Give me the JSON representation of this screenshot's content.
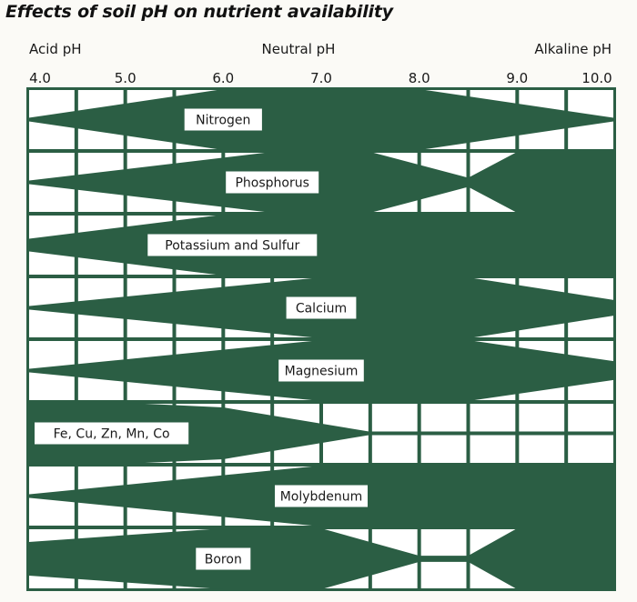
{
  "title": "Effects of soil pH on nutrient availability",
  "colors": {
    "band": "#2b5e44",
    "background": "#fbfaf6",
    "label_box": "#ffffff",
    "text": "#1a1a1a"
  },
  "chart_data": {
    "type": "area",
    "title": "Effects of soil pH on nutrient availability",
    "x_header_labels": {
      "left": "Acid pH",
      "center": "Neutral pH",
      "right": "Alkaline pH"
    },
    "x_ticks": [
      "4.0",
      "5.0",
      "6.0",
      "7.0",
      "8.0",
      "9.0",
      "10.0"
    ],
    "xlim": [
      4.0,
      10.0
    ],
    "value_meaning": "relative availability (band thickness, 0-1)",
    "series": [
      {
        "name": "Nitrogen",
        "x": [
          4.0,
          6.0,
          8.0,
          10.0
        ],
        "values": [
          0.05,
          1.0,
          1.0,
          0.05
        ]
      },
      {
        "name": "Phosphorus",
        "x": [
          4.0,
          6.5,
          7.5,
          8.5,
          9.0,
          10.0
        ],
        "values": [
          0.05,
          1.0,
          1.0,
          0.15,
          1.0,
          1.0
        ]
      },
      {
        "name": "Potassium and Sulfur",
        "x": [
          4.0,
          6.0,
          10.0
        ],
        "values": [
          0.2,
          1.0,
          1.0
        ]
      },
      {
        "name": "Calcium",
        "x": [
          4.0,
          7.0,
          8.5,
          10.0
        ],
        "values": [
          0.05,
          1.0,
          1.0,
          0.25
        ]
      },
      {
        "name": "Magnesium",
        "x": [
          4.0,
          7.0,
          8.5,
          10.0
        ],
        "values": [
          0.05,
          1.0,
          1.0,
          0.3
        ]
      },
      {
        "name": "Fe, Cu, Zn, Mn, Co",
        "x": [
          4.0,
          5.0,
          6.0,
          7.5,
          10.0
        ],
        "values": [
          1.0,
          1.0,
          0.85,
          0.05,
          0.05
        ]
      },
      {
        "name": "Molybdenum",
        "x": [
          4.0,
          7.0,
          10.0
        ],
        "values": [
          0.05,
          1.0,
          1.0
        ]
      },
      {
        "name": "Boron",
        "x": [
          4.0,
          6.0,
          7.0,
          8.0,
          8.5,
          9.0,
          10.0
        ],
        "values": [
          0.55,
          1.0,
          1.0,
          0.1,
          0.1,
          1.0,
          1.0
        ]
      }
    ]
  }
}
